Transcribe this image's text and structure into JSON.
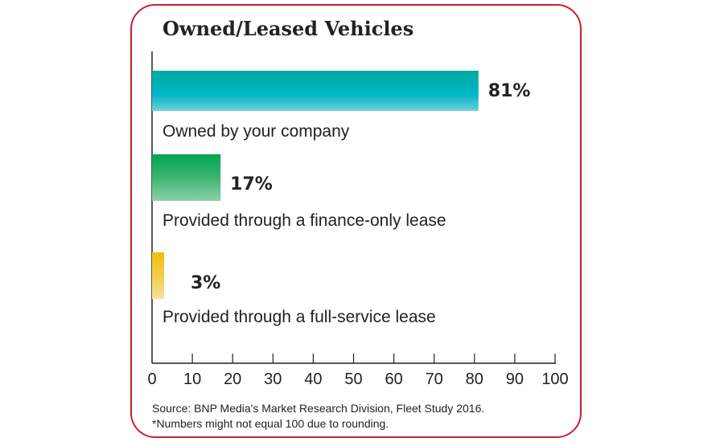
{
  "chart_data": {
    "type": "bar",
    "orientation": "horizontal",
    "title": "Owned/Leased Vehicles",
    "categories": [
      "Owned by your company",
      "Provided through a finance-only lease",
      "Provided through a full-service lease"
    ],
    "values": [
      81,
      17,
      3
    ],
    "value_labels": [
      "81%",
      "17%",
      "3%"
    ],
    "colors": [
      "#00b3c4",
      "#00a651",
      "#f2c318"
    ],
    "xlim": [
      0,
      100
    ],
    "xticks": [
      0,
      10,
      20,
      30,
      40,
      50,
      60,
      70,
      80,
      90,
      100
    ],
    "xtick_labels": [
      "0",
      "10",
      "20",
      "30",
      "40",
      "50",
      "60",
      "70",
      "80",
      "90",
      "100"
    ],
    "grid": false,
    "frame_color": "#c8202f"
  },
  "notes": {
    "source": "Source: BNP Media's Market Research Division, Fleet Study 2016.",
    "footnote": "*Numbers might not equal 100 due to rounding."
  }
}
